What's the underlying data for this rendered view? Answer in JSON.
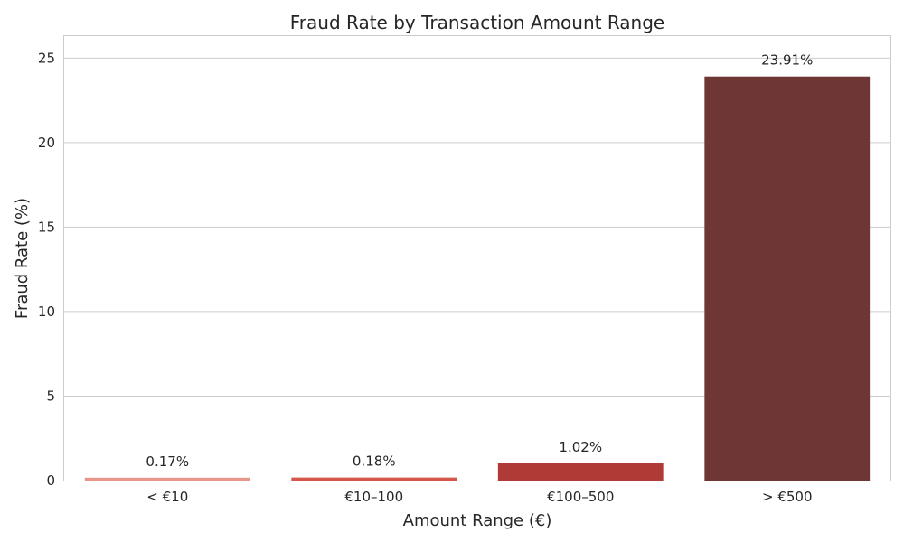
{
  "chart_data": {
    "type": "bar",
    "title": "Fraud Rate by Transaction Amount Range",
    "xlabel": "Amount Range (€)",
    "ylabel": "Fraud Rate (%)",
    "categories": [
      "< €10",
      "€10–100",
      "€100–500",
      "> €500"
    ],
    "values": [
      0.17,
      0.18,
      1.02,
      23.91
    ],
    "data_labels": [
      "0.17%",
      "0.18%",
      "1.02%",
      "23.91%"
    ],
    "bar_colors": [
      "#e8958a",
      "#d4574a",
      "#b03a35",
      "#6e3735"
    ],
    "ylim": [
      0,
      26.3
    ],
    "yticks": [
      0,
      5,
      10,
      15,
      20,
      25
    ],
    "grid": true,
    "grid_axis": "y",
    "legend": "none"
  }
}
